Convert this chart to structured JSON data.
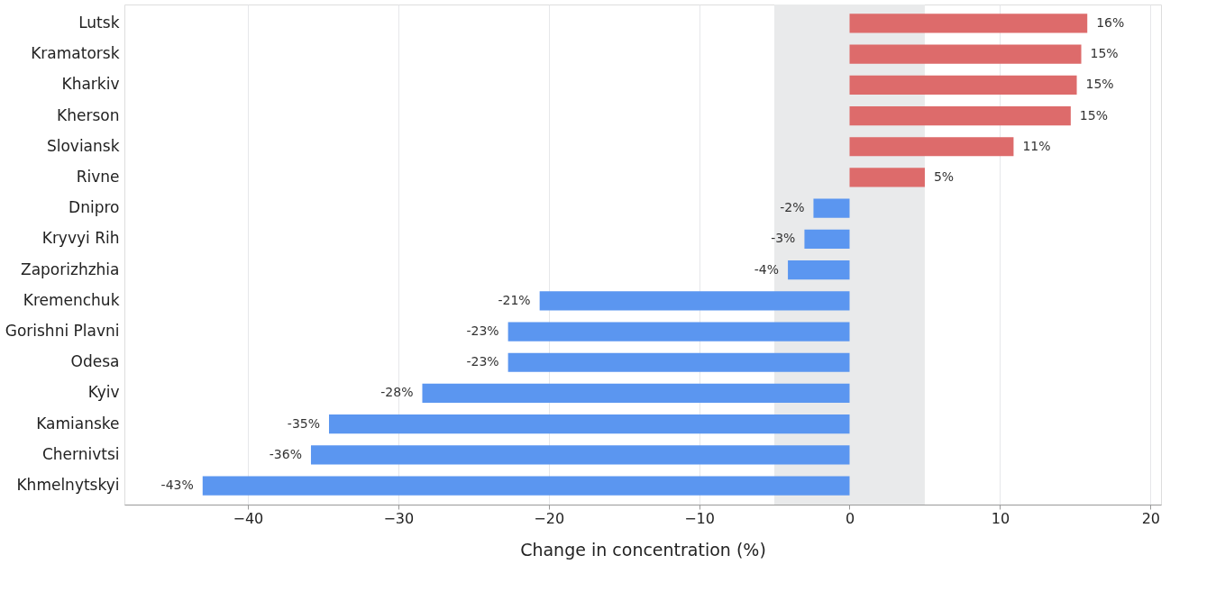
{
  "chart_data": {
    "type": "bar",
    "orientation": "horizontal",
    "xlabel": "Change in concentration (%)",
    "categories": [
      "Lutsk",
      "Kramatorsk",
      "Kharkiv",
      "Kherson",
      "Sloviansk",
      "Rivne",
      "Dnipro",
      "Kryvyi Rih",
      "Zaporizhzhia",
      "Kremenchuk",
      "Gorishni Plavni",
      "Odesa",
      "Kyiv",
      "Kamianske",
      "Chernivtsi",
      "Khmelnytskyi"
    ],
    "values": [
      15.8,
      15.4,
      15.1,
      14.7,
      10.9,
      5.0,
      -2.4,
      -3.0,
      -4.1,
      -20.6,
      -22.7,
      -22.7,
      -28.4,
      -34.6,
      -35.8,
      -43.0
    ],
    "colors": [
      "#dd6b6b",
      "#dd6b6b",
      "#dd6b6b",
      "#dd6b6b",
      "#dd6b6b",
      "#dd6b6b",
      "#5b96f0",
      "#5b96f0",
      "#5b96f0",
      "#5b96f0",
      "#5b96f0",
      "#5b96f0",
      "#5b96f0",
      "#5b96f0",
      "#5b96f0",
      "#5b96f0"
    ],
    "value_labels": [
      "16%",
      "15%",
      "15%",
      "15%",
      "11%",
      "5%",
      "-2%",
      "-3%",
      "-4%",
      "-21%",
      "-23%",
      "-23%",
      "-28%",
      "-35%",
      "-36%",
      "-43%"
    ],
    "xlim": [
      -48.2,
      20.7
    ],
    "xticks": [
      -40,
      -30,
      -20,
      -10,
      0,
      10,
      20
    ],
    "bands": [
      {
        "axis": "x",
        "from": -5,
        "to": 5,
        "color": "#e9eaeb"
      }
    ],
    "grid": "x"
  }
}
